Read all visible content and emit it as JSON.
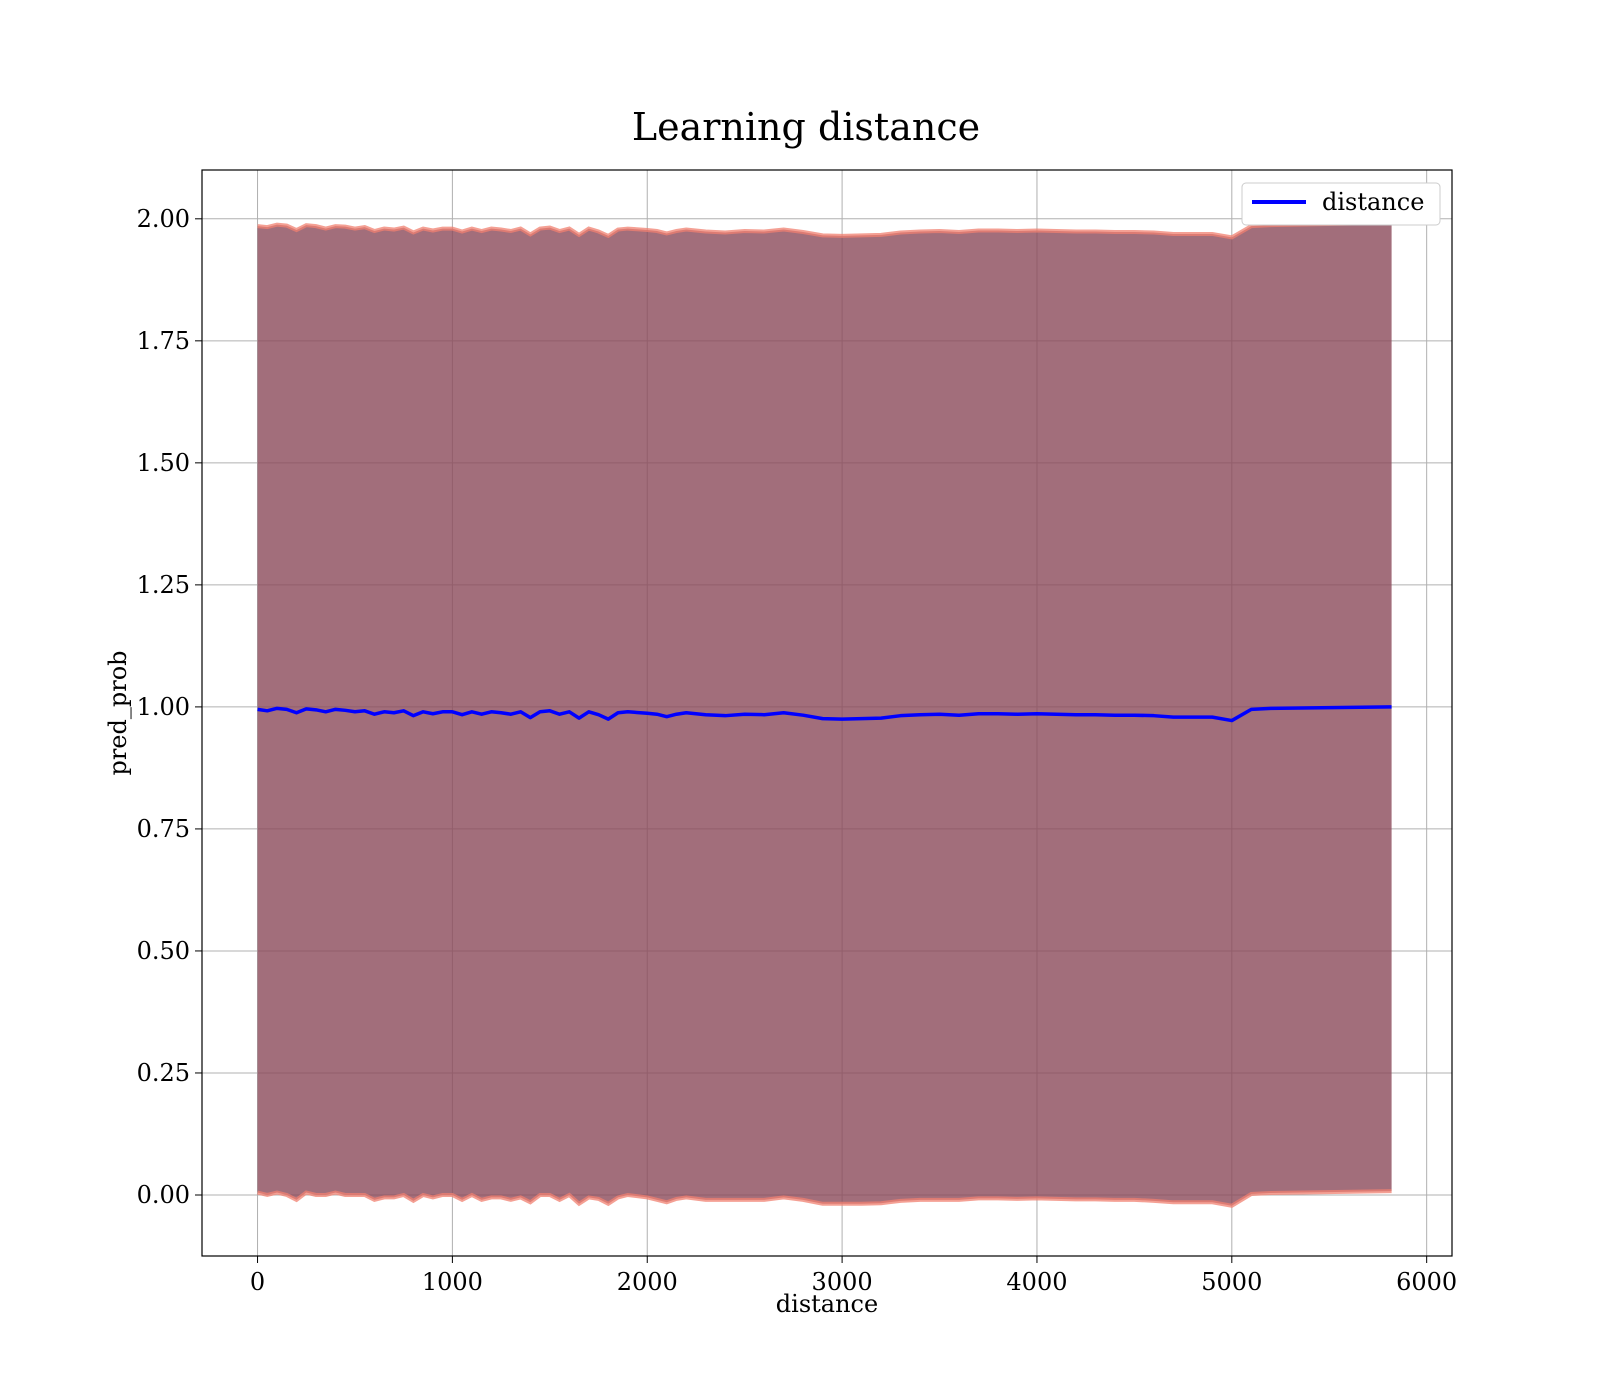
{
  "chart_data": {
    "type": "line",
    "title": "Learning distance",
    "xlabel": "distance",
    "ylabel": "pred_prob",
    "xlim": [
      -285,
      6130
    ],
    "ylim": [
      -0.125,
      2.1
    ],
    "xticks": [
      0,
      1000,
      2000,
      3000,
      4000,
      5000,
      6000
    ],
    "xtick_labels": [
      "0",
      "1000",
      "2000",
      "3000",
      "4000",
      "5000",
      "6000"
    ],
    "yticks": [
      0.0,
      0.25,
      0.5,
      0.75,
      1.0,
      1.25,
      1.5,
      1.75,
      2.0
    ],
    "ytick_labels": [
      "0.00",
      "0.25",
      "0.50",
      "0.75",
      "1.00",
      "1.25",
      "1.50",
      "1.75",
      "2.00"
    ],
    "grid": true,
    "legend": {
      "placement": "upper right",
      "entries": [
        "distance"
      ]
    },
    "colors": {
      "line": "#0000ff",
      "band_fill": "#8b4a5a",
      "band_edge": "#f08070"
    },
    "series": [
      {
        "name": "distance",
        "x": [
          0,
          50,
          100,
          150,
          200,
          250,
          300,
          350,
          400,
          450,
          500,
          550,
          600,
          650,
          700,
          750,
          800,
          850,
          900,
          950,
          1000,
          1050,
          1100,
          1150,
          1200,
          1250,
          1300,
          1350,
          1400,
          1450,
          1500,
          1550,
          1600,
          1650,
          1700,
          1750,
          1800,
          1850,
          1900,
          2000,
          2050,
          2100,
          2150,
          2200,
          2300,
          2400,
          2500,
          2600,
          2700,
          2800,
          2900,
          3000,
          3100,
          3200,
          3300,
          3400,
          3500,
          3600,
          3700,
          3800,
          3900,
          4000,
          4100,
          4200,
          4300,
          4400,
          4500,
          4600,
          4700,
          4800,
          4900,
          5000,
          5100,
          5200,
          5820
        ],
        "y": [
          0.995,
          0.992,
          0.997,
          0.995,
          0.988,
          0.996,
          0.994,
          0.99,
          0.995,
          0.993,
          0.99,
          0.992,
          0.985,
          0.99,
          0.988,
          0.992,
          0.982,
          0.99,
          0.986,
          0.99,
          0.99,
          0.984,
          0.99,
          0.985,
          0.99,
          0.988,
          0.985,
          0.99,
          0.978,
          0.99,
          0.992,
          0.985,
          0.99,
          0.977,
          0.99,
          0.984,
          0.975,
          0.988,
          0.99,
          0.987,
          0.985,
          0.98,
          0.985,
          0.988,
          0.984,
          0.982,
          0.985,
          0.984,
          0.988,
          0.983,
          0.976,
          0.975,
          0.976,
          0.977,
          0.982,
          0.984,
          0.985,
          0.983,
          0.986,
          0.986,
          0.985,
          0.986,
          0.985,
          0.984,
          0.984,
          0.983,
          0.983,
          0.982,
          0.979,
          0.979,
          0.979,
          0.972,
          0.995,
          0.997,
          1.0
        ],
        "band_lower": [
          0.005,
          0.0,
          0.005,
          0.0,
          -0.01,
          0.005,
          0.0,
          0.0,
          0.005,
          0.0,
          0.0,
          0.0,
          -0.01,
          -0.005,
          -0.005,
          0.0,
          -0.012,
          0.0,
          -0.005,
          0.0,
          0.0,
          -0.01,
          0.0,
          -0.01,
          -0.005,
          -0.005,
          -0.01,
          -0.005,
          -0.015,
          0.0,
          0.0,
          -0.01,
          0.0,
          -0.018,
          -0.005,
          -0.008,
          -0.018,
          -0.005,
          0.0,
          -0.005,
          -0.01,
          -0.015,
          -0.008,
          -0.005,
          -0.01,
          -0.01,
          -0.01,
          -0.01,
          -0.005,
          -0.01,
          -0.018,
          -0.018,
          -0.018,
          -0.017,
          -0.012,
          -0.01,
          -0.01,
          -0.01,
          -0.007,
          -0.007,
          -0.008,
          -0.007,
          -0.008,
          -0.009,
          -0.009,
          -0.01,
          -0.01,
          -0.012,
          -0.015,
          -0.015,
          -0.015,
          -0.022,
          0.002,
          0.004,
          0.008
        ],
        "band_upper": [
          1.985,
          1.983,
          1.988,
          1.986,
          1.977,
          1.987,
          1.985,
          1.98,
          1.985,
          1.984,
          1.98,
          1.983,
          1.975,
          1.98,
          1.978,
          1.982,
          1.972,
          1.98,
          1.976,
          1.98,
          1.98,
          1.974,
          1.98,
          1.975,
          1.98,
          1.978,
          1.975,
          1.98,
          1.968,
          1.98,
          1.982,
          1.975,
          1.98,
          1.967,
          1.98,
          1.974,
          1.965,
          1.978,
          1.98,
          1.977,
          1.975,
          1.97,
          1.975,
          1.978,
          1.974,
          1.972,
          1.975,
          1.974,
          1.978,
          1.973,
          1.966,
          1.965,
          1.966,
          1.967,
          1.972,
          1.974,
          1.975,
          1.973,
          1.976,
          1.976,
          1.975,
          1.976,
          1.975,
          1.974,
          1.974,
          1.973,
          1.973,
          1.972,
          1.969,
          1.969,
          1.969,
          1.962,
          1.985,
          1.987,
          1.992
        ]
      }
    ]
  }
}
